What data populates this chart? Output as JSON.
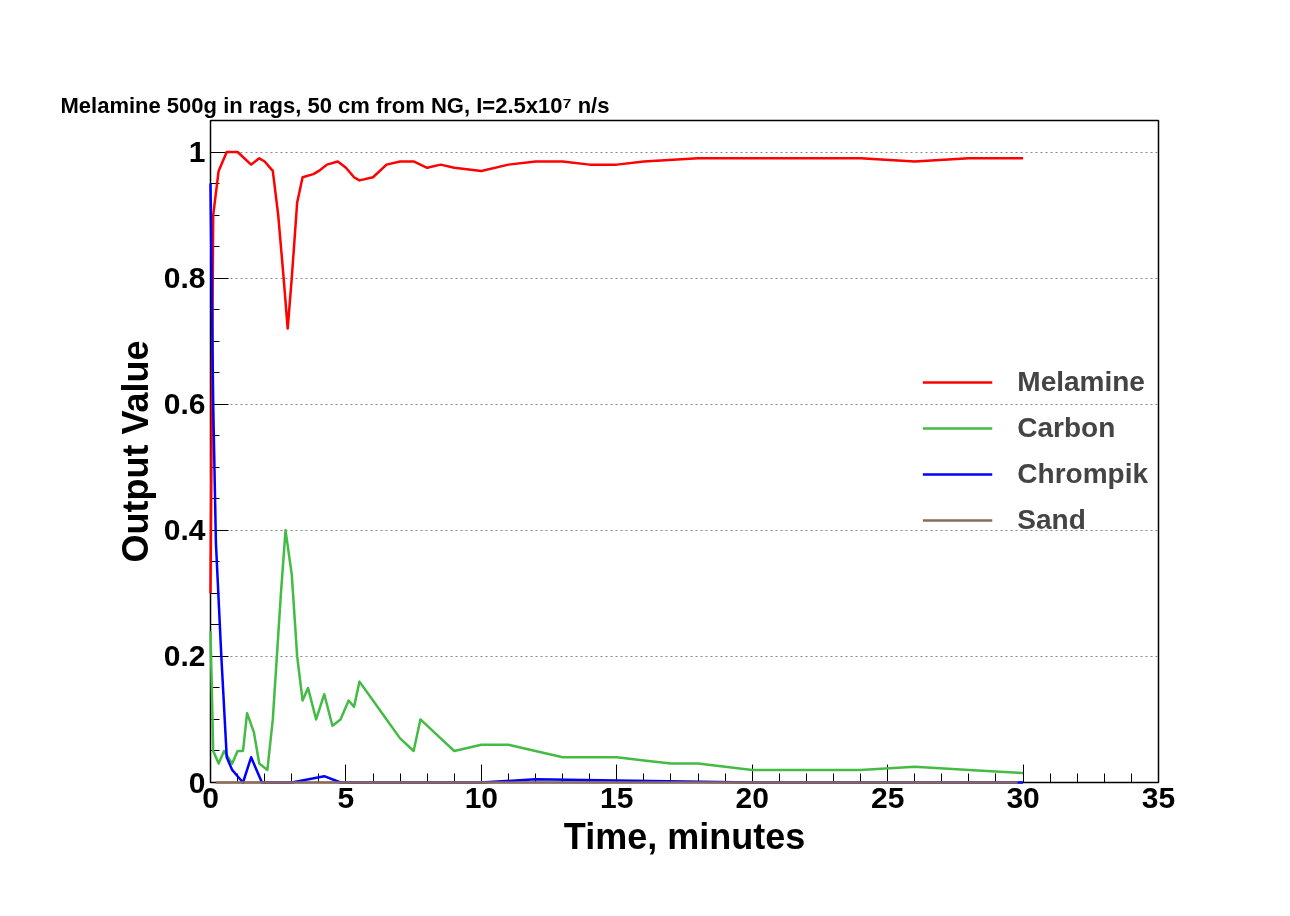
{
  "chart_data": {
    "type": "line",
    "title": "Melamine 500g in rags, 50 cm from NG, I=2.5x10⁷ n/s",
    "xlabel": "Time, minutes",
    "ylabel": "Output Value",
    "xlim": [
      0,
      35
    ],
    "xticks": [
      0,
      5,
      10,
      15,
      20,
      25,
      30,
      35
    ],
    "ylim": [
      0,
      1.05
    ],
    "yticks": [
      0,
      0.2,
      0.4,
      0.6,
      0.8,
      1
    ],
    "grid": "y",
    "legend": "right",
    "line_style": "solid",
    "marker": "none",
    "series": [
      {
        "name": "Melamine",
        "color": "#ff0000",
        "x": [
          0,
          0.1,
          0.3,
          0.6,
          1.0,
          1.5,
          1.8,
          2.0,
          2.3,
          2.5,
          2.7,
          2.85,
          3.0,
          3.2,
          3.4,
          3.8,
          4.0,
          4.3,
          4.7,
          5.0,
          5.3,
          5.5,
          6.0,
          6.5,
          7.0,
          7.5,
          8.0,
          8.5,
          9.0,
          10,
          11,
          12,
          13,
          14,
          15,
          16,
          18,
          20,
          22,
          24,
          26,
          28,
          30
        ],
        "values": [
          0.3,
          0.9,
          0.97,
          1.0,
          1.0,
          0.98,
          0.99,
          0.985,
          0.97,
          0.9,
          0.8,
          0.72,
          0.8,
          0.92,
          0.96,
          0.965,
          0.97,
          0.98,
          0.985,
          0.975,
          0.96,
          0.955,
          0.96,
          0.98,
          0.985,
          0.985,
          0.975,
          0.98,
          0.975,
          0.97,
          0.98,
          0.985,
          0.985,
          0.98,
          0.98,
          0.985,
          0.99,
          0.99,
          0.99,
          0.99,
          0.985,
          0.99,
          0.99
        ]
      },
      {
        "name": "Carbon",
        "color": "#44bb44",
        "x": [
          0,
          0.1,
          0.3,
          0.5,
          0.8,
          1.0,
          1.2,
          1.35,
          1.6,
          1.8,
          2.1,
          2.3,
          2.6,
          2.77,
          3.0,
          3.2,
          3.4,
          3.6,
          3.9,
          4.2,
          4.5,
          4.8,
          5.1,
          5.3,
          5.5,
          6.0,
          6.5,
          7.0,
          7.5,
          7.75,
          8.5,
          9.0,
          10,
          11,
          12,
          13,
          14,
          15,
          16,
          17,
          18,
          19,
          20,
          22,
          24,
          26,
          28,
          30
        ],
        "values": [
          0.24,
          0.05,
          0.03,
          0.05,
          0.03,
          0.05,
          0.05,
          0.11,
          0.08,
          0.03,
          0.02,
          0.1,
          0.3,
          0.4,
          0.33,
          0.2,
          0.13,
          0.15,
          0.1,
          0.14,
          0.09,
          0.1,
          0.13,
          0.12,
          0.16,
          0.13,
          0.1,
          0.07,
          0.05,
          0.1,
          0.07,
          0.05,
          0.06,
          0.06,
          0.05,
          0.04,
          0.04,
          0.04,
          0.035,
          0.03,
          0.03,
          0.025,
          0.02,
          0.02,
          0.02,
          0.025,
          0.02,
          0.015
        ]
      },
      {
        "name": "Chrompik",
        "color": "#0000ff",
        "x": [
          0,
          0.1,
          0.2,
          0.4,
          0.6,
          0.8,
          1.0,
          1.2,
          1.5,
          1.7,
          1.9,
          3,
          4.2,
          4.8,
          10,
          12,
          15,
          20,
          30
        ],
        "values": [
          0.95,
          0.6,
          0.38,
          0.2,
          0.04,
          0.02,
          0.01,
          0.0,
          0.04,
          0.02,
          0.0,
          0.0,
          0.01,
          0.0,
          0.0,
          0.005,
          0.003,
          0.0,
          0.0
        ]
      },
      {
        "name": "Sand",
        "color": "#8b6b5a",
        "x": [
          0.2,
          2.5,
          7.5,
          12.5,
          17.5,
          22.5,
          27.5,
          29.8
        ],
        "values": [
          0,
          0,
          0,
          0,
          0,
          0,
          0,
          0
        ]
      }
    ]
  }
}
